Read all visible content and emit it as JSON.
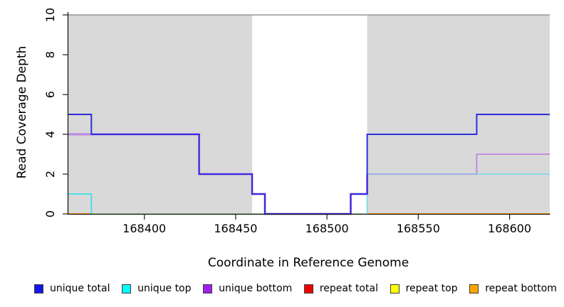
{
  "legend": {
    "items": [
      {
        "label": "unique total",
        "color": "#1414ee"
      },
      {
        "label": "unique top",
        "color": "#00ffff"
      },
      {
        "label": "unique bottom",
        "color": "#a020f0"
      },
      {
        "label": "repeat total",
        "color": "#ee0000"
      },
      {
        "label": "repeat top",
        "color": "#ffff00"
      },
      {
        "label": "repeat bottom",
        "color": "#ffa500"
      }
    ]
  },
  "chart_data": {
    "type": "line",
    "subtype": "step-coverage",
    "title": "",
    "xlabel": "Coordinate in Reference Genome",
    "ylabel": "Read Coverage Depth",
    "xlim": [
      168358,
      168622
    ],
    "ylim": [
      0,
      10
    ],
    "xticks": [
      168400,
      168450,
      168500,
      168550,
      168600
    ],
    "yticks": [
      0,
      2,
      4,
      6,
      8,
      10
    ],
    "grid": false,
    "legend_position": "bottom",
    "background_regions": [
      {
        "from": 168358,
        "to": 168459,
        "fill": "#d9d9d9"
      },
      {
        "from": 168459,
        "to": 168522,
        "fill": "#ffffff"
      },
      {
        "from": 168522,
        "to": 168622,
        "fill": "#d9d9d9"
      }
    ],
    "region_top_border_color": "#8e8e8e",
    "series": [
      {
        "name": "unique total",
        "color": "#2e2edf",
        "segments": [
          [
            168358,
            168371,
            5
          ],
          [
            168371,
            168430,
            4
          ],
          [
            168430,
            168459,
            2
          ],
          [
            168459,
            168466,
            1
          ],
          [
            168466,
            168513,
            0
          ],
          [
            168513,
            168522,
            1
          ],
          [
            168522,
            168582,
            4
          ],
          [
            168582,
            168622,
            5
          ]
        ]
      },
      {
        "name": "unique top",
        "color": "#3cdee8",
        "segments": [
          [
            168358,
            168371,
            1
          ],
          [
            168371,
            168522,
            0
          ],
          [
            168522,
            168622,
            2
          ]
        ]
      },
      {
        "name": "unique bottom",
        "color": "#bd85e3",
        "segments": [
          [
            168358,
            168430,
            4
          ],
          [
            168430,
            168459,
            2
          ],
          [
            168459,
            168466,
            1
          ],
          [
            168466,
            168513,
            0
          ],
          [
            168513,
            168522,
            1
          ],
          [
            168522,
            168582,
            2
          ],
          [
            168582,
            168622,
            3
          ]
        ]
      },
      {
        "name": "repeat total",
        "color": "#ee0000",
        "segments": [
          [
            168358,
            168622,
            0
          ]
        ]
      },
      {
        "name": "repeat top",
        "color": "#ffff00",
        "segments": [
          [
            168358,
            168622,
            0
          ]
        ]
      },
      {
        "name": "repeat bottom",
        "color": "#ff9000",
        "segments": [
          [
            168358,
            168622,
            0
          ]
        ]
      }
    ],
    "visible_lines": [
      {
        "name": "zero-line-green-blend",
        "color": "#7cc87c",
        "width": 1.6,
        "points": [
          [
            168371,
            0
          ],
          [
            168522,
            0
          ]
        ]
      },
      {
        "name": "repeat-bottom-line-left",
        "color": "#ff9000",
        "width": 2,
        "points": [
          [
            168358,
            0
          ],
          [
            168371,
            0
          ]
        ]
      },
      {
        "name": "repeat-bottom-line-right",
        "color": "#ff9000",
        "width": 2,
        "points": [
          [
            168522,
            0
          ],
          [
            168622,
            0
          ]
        ]
      },
      {
        "name": "unique-top-line-left",
        "color": "#3cdee8",
        "width": 1.8,
        "points": [
          [
            168358,
            1
          ],
          [
            168371,
            1
          ],
          [
            168371,
            0
          ]
        ]
      },
      {
        "name": "unique-top-line-right",
        "color": "#7edbe2",
        "width": 1.8,
        "points": [
          [
            168522,
            0
          ],
          [
            168522,
            2
          ],
          [
            168622,
            2
          ]
        ]
      },
      {
        "name": "top-bottom-overlap-line",
        "color": "#9ba9e9",
        "width": 1.8,
        "points": [
          [
            168522,
            2
          ],
          [
            168582,
            2
          ]
        ]
      },
      {
        "name": "unique-bottom-line-left",
        "color": "#bd85e3",
        "width": 3,
        "points": [
          [
            168358,
            4
          ],
          [
            168430,
            4
          ],
          [
            168430,
            2
          ],
          [
            168459,
            2
          ],
          [
            168459,
            1
          ],
          [
            168466,
            1
          ],
          [
            168466,
            0
          ],
          [
            168513,
            0
          ],
          [
            168513,
            1
          ],
          [
            168522,
            1
          ],
          [
            168522,
            2
          ]
        ]
      },
      {
        "name": "unique-bottom-line-right",
        "color": "#bd85e3",
        "width": 1.8,
        "points": [
          [
            168582,
            2
          ],
          [
            168582,
            3
          ],
          [
            168622,
            3
          ]
        ]
      },
      {
        "name": "unique-total-line",
        "color": "#2e2edf",
        "width": 2,
        "points": [
          [
            168358,
            5
          ],
          [
            168371,
            5
          ],
          [
            168371,
            4
          ],
          [
            168430,
            4
          ],
          [
            168430,
            2
          ],
          [
            168459,
            2
          ],
          [
            168459,
            1
          ],
          [
            168466,
            1
          ],
          [
            168466,
            0
          ],
          [
            168513,
            0
          ],
          [
            168513,
            1
          ],
          [
            168522,
            1
          ],
          [
            168522,
            4
          ],
          [
            168582,
            4
          ],
          [
            168582,
            5
          ],
          [
            168622,
            5
          ]
        ]
      }
    ]
  }
}
